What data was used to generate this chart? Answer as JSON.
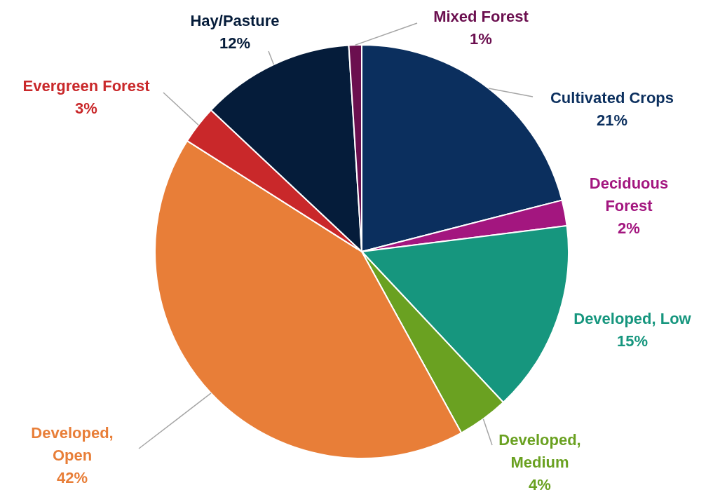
{
  "chart_data": {
    "type": "pie",
    "categories": [
      "Cultivated Crops",
      "Deciduous Forest",
      "Developed, Low",
      "Developed, Medium",
      "Developed, Open",
      "Evergreen Forest",
      "Hay/Pasture",
      "Mixed Forest"
    ],
    "values": [
      21,
      2,
      15,
      4,
      42,
      3,
      12,
      1
    ],
    "colors": [
      "#0b2f5e",
      "#a3167f",
      "#16967e",
      "#6aa121",
      "#e87e38",
      "#c9282a",
      "#051c3a",
      "#6b0f4f"
    ],
    "value_labels": [
      "21%",
      "2%",
      "15%",
      "4%",
      "42%",
      "3%",
      "12%",
      "1%"
    ]
  }
}
